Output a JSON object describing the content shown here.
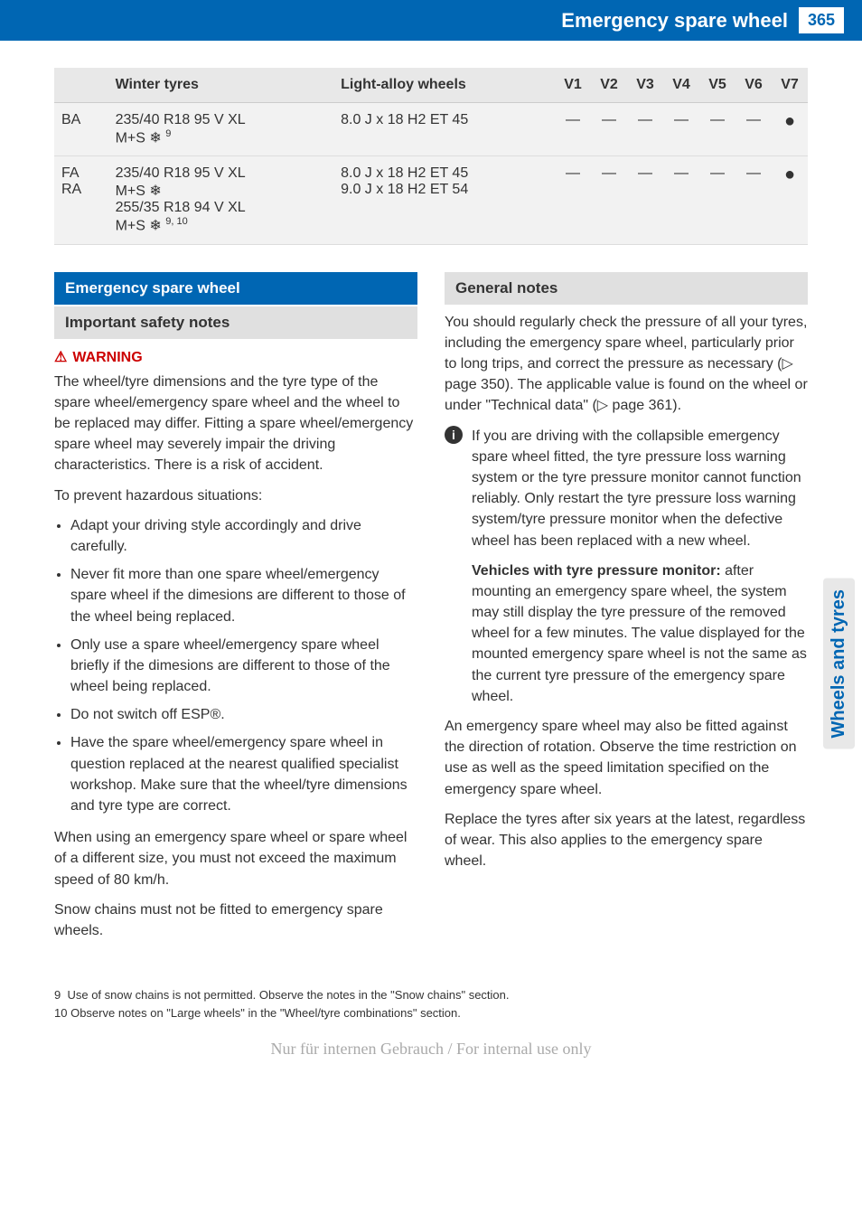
{
  "header": {
    "title": "Emergency spare wheel",
    "page": "365"
  },
  "sideTab": "Wheels and tyres",
  "table": {
    "headers": [
      "",
      "Winter tyres",
      "Light-alloy wheels",
      "V1",
      "V2",
      "V3",
      "V4",
      "V5",
      "V6",
      "V7"
    ],
    "rows": [
      {
        "label": "BA",
        "tyres": "235/40 R18 95 V XL\nM+S ❄ ",
        "tyres_sup": "9",
        "wheels": "8.0 J x 18 H2 ET 45",
        "v": [
          "—",
          "—",
          "—",
          "—",
          "—",
          "—",
          "●"
        ]
      },
      {
        "label": "FA\nRA",
        "tyres": "235/40 R18 95 V XL\nM+S ❄\n255/35 R18 94 V XL\nM+S ❄ ",
        "tyres_sup": "9, 10",
        "wheels": "8.0 J x 18 H2 ET 45\n9.0 J x 18 H2 ET 54",
        "v": [
          "—",
          "—",
          "—",
          "—",
          "—",
          "—",
          "●"
        ]
      }
    ]
  },
  "left": {
    "sectionTitle": "Emergency spare wheel",
    "subTitle": "Important safety notes",
    "warningLabel": "WARNING",
    "warningP1": "The wheel/tyre dimensions and the tyre type of the spare wheel/emergency spare wheel and the wheel to be replaced may differ. Fitting a spare wheel/emergency spare wheel may severely impair the driving characteristics. There is a risk of accident.",
    "warningP2": "To prevent hazardous situations:",
    "bullets": [
      "Adapt your driving style accordingly and drive carefully.",
      "Never fit more than one spare wheel/emergency spare wheel if the dimesions are different to those of the wheel being replaced.",
      "Only use a spare wheel/emergency spare wheel briefly if the dimesions are different to those of the wheel being replaced.",
      "Do not switch off ESP®.",
      "Have the spare wheel/emergency spare wheel in question replaced at the nearest qualified specialist workshop. Make sure that the wheel/tyre dimensions and tyre type are correct."
    ],
    "p3": "When using an emergency spare wheel or spare wheel of a different size, you must not exceed the maximum speed of 80 km/h.",
    "p4": "Snow chains must not be fitted to emergency spare wheels."
  },
  "right": {
    "subTitle": "General notes",
    "p1": "You should regularly check the pressure of all your tyres, including the emergency spare wheel, particularly prior to long trips, and correct the pressure as necessary (▷ page 350). The applicable value is found on the wheel or under \"Technical data\" (▷ page 361).",
    "info1": "If you are driving with the collapsible emergency spare wheel fitted, the tyre pressure loss warning system or the tyre pressure monitor cannot function reliably. Only restart the tyre pressure loss warning system/tyre pressure monitor when the defective wheel has been replaced with a new wheel.",
    "info2bold": "Vehicles with tyre pressure monitor:",
    "info2": " after mounting an emergency spare wheel, the system may still display the tyre pressure of the removed wheel for a few minutes. The value displayed for the mounted emergency spare wheel is not the same as the current tyre pressure of the emergency spare wheel.",
    "p2": "An emergency spare wheel may also be fitted against the direction of rotation. Observe the time restriction on use as well as the speed limitation specified on the emergency spare wheel.",
    "p3": "Replace the tyres after six years at the latest, regardless of wear. This also applies to the emergency spare wheel."
  },
  "footnotes": {
    "f9": "Use of snow chains is not permitted. Observe the notes in the \"Snow chains\" section.",
    "f10": "Observe notes on \"Large wheels\" in the \"Wheel/tyre combinations\" section."
  },
  "footer": "Nur für internen Gebrauch / For internal use only"
}
